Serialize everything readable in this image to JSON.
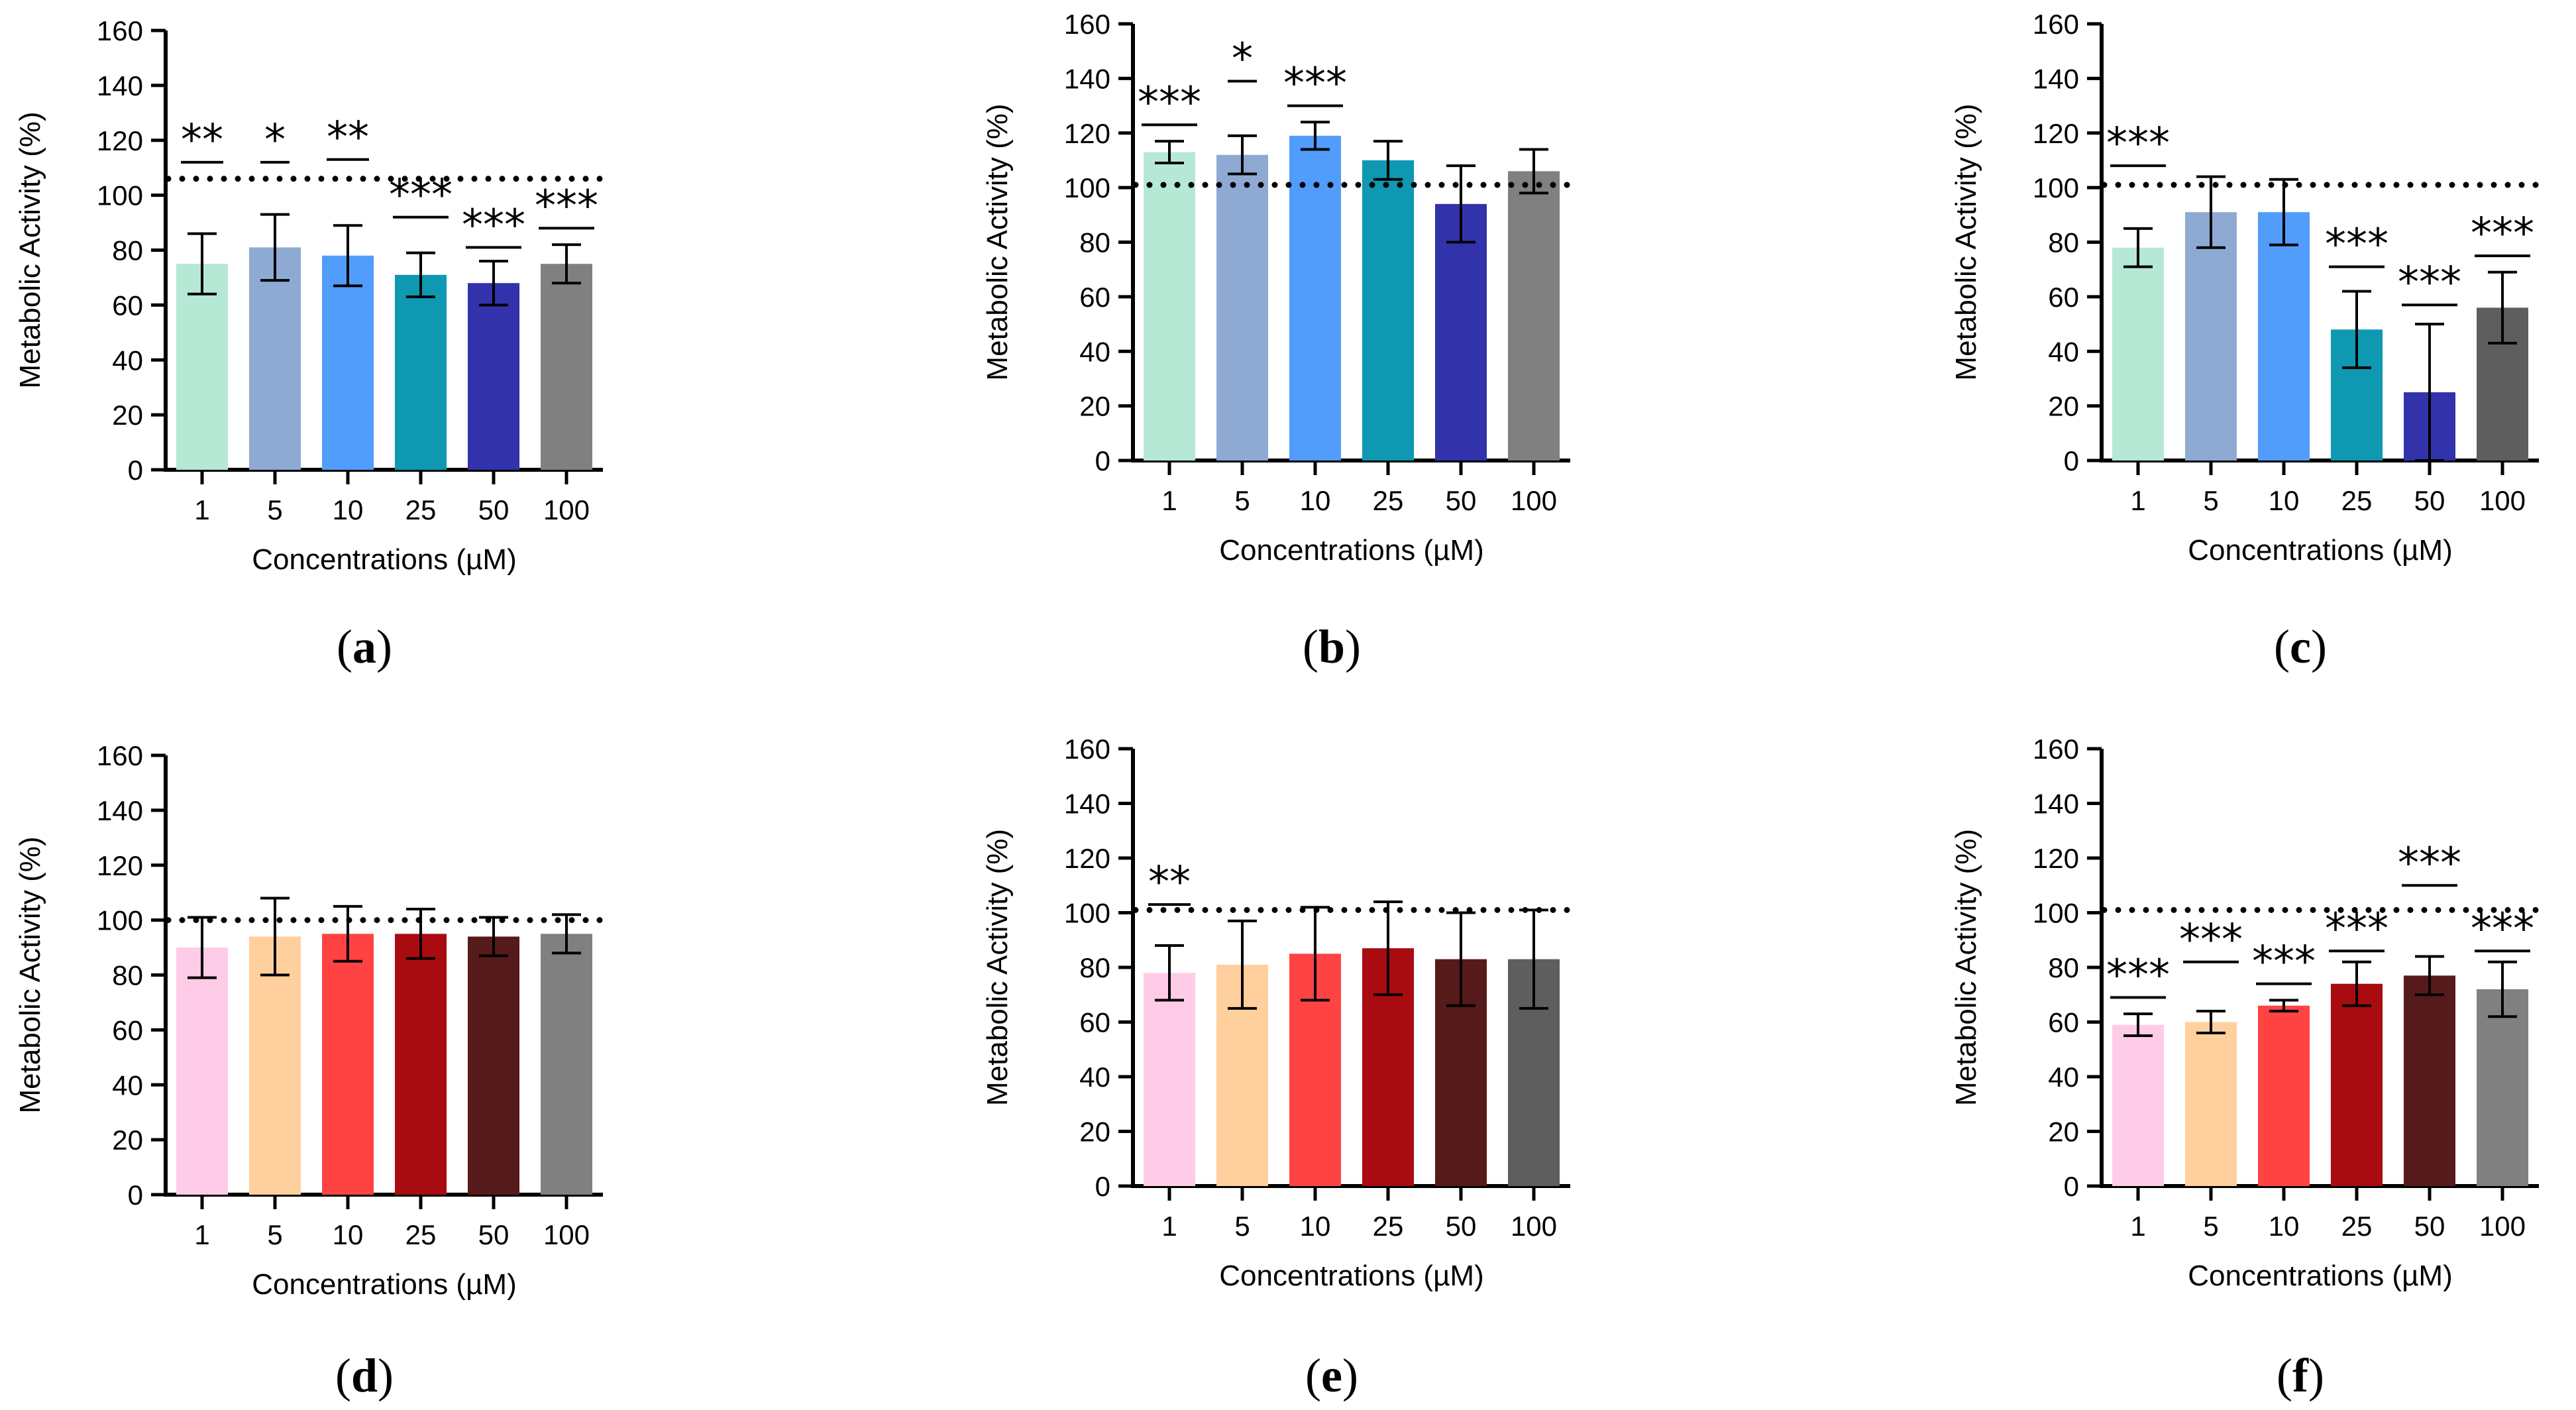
{
  "chart_data": [
    {
      "panel": "a",
      "type": "bar",
      "categories": [
        "1",
        "5",
        "10",
        "25",
        "50",
        "100"
      ],
      "values": [
        75,
        81,
        78,
        71,
        68,
        75
      ],
      "errors": [
        11,
        12,
        11,
        8,
        8,
        7
      ],
      "colors": [
        "#b5e8d5",
        "#8eaad3",
        "#529cfb",
        "#0f98b2",
        "#3232aa",
        "#808080"
      ],
      "significance": [
        "**",
        "*",
        "**",
        "***",
        "***",
        "***"
      ],
      "sig_y": [
        112,
        112,
        113,
        92,
        81,
        88
      ],
      "reference_line": 106,
      "xlabel": "Concentrations (µM)",
      "ylabel": "Metabolic Activity (%)",
      "ylim": [
        0,
        160
      ],
      "yticks": [
        "0",
        "20",
        "40",
        "60",
        "80",
        "100",
        "120",
        "140",
        "160"
      ],
      "label_open": "(",
      "label_letter": "a",
      "label_close": ")"
    },
    {
      "panel": "b",
      "type": "bar",
      "categories": [
        "1",
        "5",
        "10",
        "25",
        "50",
        "100"
      ],
      "values": [
        113,
        112,
        119,
        110,
        94,
        106
      ],
      "errors": [
        4,
        7,
        5,
        7,
        14,
        8
      ],
      "colors": [
        "#b5e8d5",
        "#8eaad3",
        "#529cfb",
        "#0f98b2",
        "#3232aa",
        "#808080"
      ],
      "significance": [
        "***",
        "*",
        "***",
        "",
        "",
        ""
      ],
      "sig_y": [
        123,
        139,
        130,
        null,
        null,
        null
      ],
      "reference_line": 101,
      "xlabel": "Concentrations (µM)",
      "ylabel": "Metabolic Activity (%)",
      "ylim": [
        0,
        160
      ],
      "yticks": [
        "0",
        "20",
        "40",
        "60",
        "80",
        "100",
        "120",
        "140",
        "160"
      ],
      "label_open": "(",
      "label_letter": "b",
      "label_close": ")"
    },
    {
      "panel": "c",
      "type": "bar",
      "categories": [
        "1",
        "5",
        "10",
        "25",
        "50",
        "100"
      ],
      "values": [
        78,
        91,
        91,
        48,
        25,
        56
      ],
      "errors": [
        7,
        13,
        12,
        14,
        25,
        13
      ],
      "colors": [
        "#b5e8d5",
        "#8eaad3",
        "#529cfb",
        "#0f98b2",
        "#3232aa",
        "#5e5e5e"
      ],
      "significance": [
        "***",
        "",
        "",
        "***",
        "***",
        "***"
      ],
      "sig_y": [
        108,
        null,
        null,
        71,
        57,
        75
      ],
      "reference_line": 101,
      "xlabel": "Concentrations (µM)",
      "ylabel": "Metabolic Activity (%)",
      "ylim": [
        0,
        160
      ],
      "yticks": [
        "0",
        "20",
        "40",
        "60",
        "80",
        "100",
        "120",
        "140",
        "160"
      ],
      "label_open": "(",
      "label_letter": "c",
      "label_close": ")"
    },
    {
      "panel": "d",
      "type": "bar",
      "categories": [
        "1",
        "5",
        "10",
        "25",
        "50",
        "100"
      ],
      "values": [
        90,
        94,
        95,
        95,
        94,
        95
      ],
      "errors": [
        11,
        14,
        10,
        9,
        7,
        7
      ],
      "colors": [
        "#ffcce8",
        "#ffd09e",
        "#ff4343",
        "#a80c10",
        "#561a1a",
        "#808080"
      ],
      "significance": [
        "",
        "",
        "",
        "",
        "",
        ""
      ],
      "sig_y": [
        null,
        null,
        null,
        null,
        null,
        null
      ],
      "reference_line": 100,
      "xlabel": "Concentrations (µM)",
      "ylabel": "Metabolic Activity (%)",
      "ylim": [
        0,
        160
      ],
      "yticks": [
        "0",
        "20",
        "40",
        "60",
        "80",
        "100",
        "120",
        "140",
        "160"
      ],
      "label_open": "(",
      "label_letter": "d",
      "label_close": ")"
    },
    {
      "panel": "e",
      "type": "bar",
      "categories": [
        "1",
        "5",
        "10",
        "25",
        "50",
        "100"
      ],
      "values": [
        78,
        81,
        85,
        87,
        83,
        83
      ],
      "errors": [
        10,
        16,
        17,
        17,
        17,
        18
      ],
      "colors": [
        "#ffcce8",
        "#ffd09e",
        "#ff4343",
        "#a80c10",
        "#561a1a",
        "#5e5e5e"
      ],
      "significance": [
        "**",
        "",
        "",
        "",
        "",
        ""
      ],
      "sig_y": [
        103,
        null,
        null,
        null,
        null,
        null
      ],
      "reference_line": 101,
      "xlabel": "Concentrations (µM)",
      "ylabel": "Metabolic Activity (%)",
      "ylim": [
        0,
        160
      ],
      "yticks": [
        "0",
        "20",
        "40",
        "60",
        "80",
        "100",
        "120",
        "140",
        "160"
      ],
      "label_open": "(",
      "label_letter": "e",
      "label_close": ")"
    },
    {
      "panel": "f",
      "type": "bar",
      "categories": [
        "1",
        "5",
        "10",
        "25",
        "50",
        "100"
      ],
      "values": [
        59,
        60,
        66,
        74,
        77,
        72
      ],
      "errors": [
        4,
        4,
        2,
        8,
        7,
        10
      ],
      "colors": [
        "#ffcce8",
        "#ffd09e",
        "#ff4343",
        "#a80c10",
        "#561a1a",
        "#808080"
      ],
      "significance": [
        "***",
        "***",
        "***",
        "***",
        "***",
        "***"
      ],
      "sig_y": [
        69,
        82,
        74,
        86,
        110,
        86
      ],
      "reference_line": 101,
      "xlabel": "Concentrations (µM)",
      "ylabel": "Metabolic Activity (%)",
      "ylim": [
        0,
        160
      ],
      "yticks": [
        "0",
        "20",
        "40",
        "60",
        "80",
        "100",
        "120",
        "140",
        "160"
      ],
      "label_open": "(",
      "label_letter": "f",
      "label_close": ")"
    }
  ]
}
